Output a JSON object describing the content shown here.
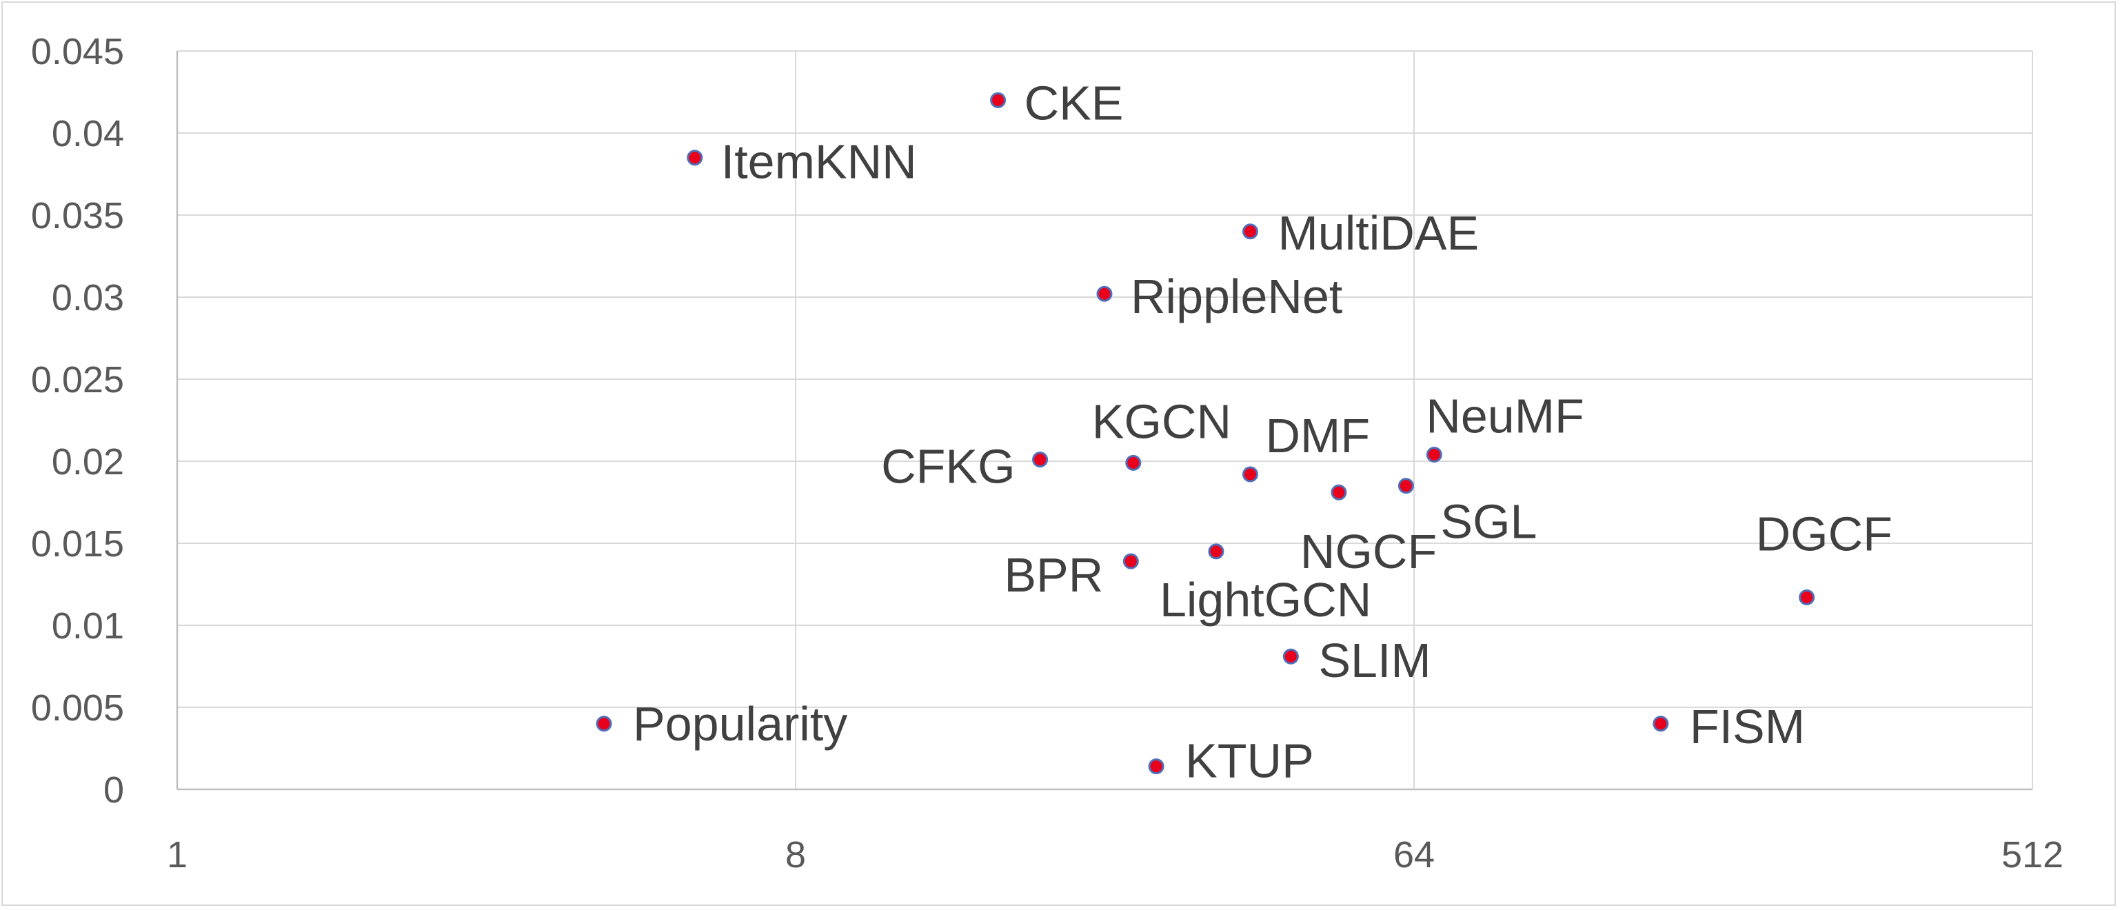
{
  "chart_data": {
    "type": "scatter",
    "title": "",
    "xlabel": "",
    "ylabel": "",
    "x_scale": "log2",
    "xlim": [
      1,
      512
    ],
    "ylim": [
      0,
      0.045
    ],
    "x_ticks": [
      1,
      8,
      64,
      512
    ],
    "x_tick_labels": [
      "1",
      "8",
      "64",
      "512"
    ],
    "y_ticks": [
      0,
      0.005,
      0.01,
      0.015,
      0.02,
      0.025,
      0.03,
      0.035,
      0.04,
      0.045
    ],
    "y_tick_labels": [
      "0",
      "0.005",
      "0.01",
      "0.015",
      "0.02",
      "0.025",
      "0.03",
      "0.035",
      "0.04",
      "0.045"
    ],
    "grid": true,
    "legend": false,
    "marker_fill": "#e8001c",
    "marker_edge": "#4f6fb8",
    "points": [
      {
        "label": "Popularity",
        "x": 4.2,
        "y": 0.004
      },
      {
        "label": "ItemKNN",
        "x": 5.7,
        "y": 0.0385
      },
      {
        "label": "CKE",
        "x": 15.8,
        "y": 0.042
      },
      {
        "label": "CFKG",
        "x": 18.2,
        "y": 0.0201
      },
      {
        "label": "RippleNet",
        "x": 22.6,
        "y": 0.0302
      },
      {
        "label": "KGCN",
        "x": 24.9,
        "y": 0.0199
      },
      {
        "label": "BPR",
        "x": 24.7,
        "y": 0.0139
      },
      {
        "label": "KTUP",
        "x": 26.9,
        "y": 0.0014
      },
      {
        "label": "LightGCN",
        "x": 32.9,
        "y": 0.0145
      },
      {
        "label": "MultiDAE",
        "x": 36.9,
        "y": 0.034
      },
      {
        "label": "DMF",
        "x": 36.9,
        "y": 0.0192
      },
      {
        "label": "SLIM",
        "x": 42.3,
        "y": 0.0081
      },
      {
        "label": "NGCF",
        "x": 49.7,
        "y": 0.0181
      },
      {
        "label": "SGL",
        "x": 62.3,
        "y": 0.0185
      },
      {
        "label": "NeuMF",
        "x": 68.5,
        "y": 0.0204
      },
      {
        "label": "FISM",
        "x": 146.7,
        "y": 0.004
      },
      {
        "label": "DGCF",
        "x": 239.7,
        "y": 0.0117
      }
    ]
  }
}
